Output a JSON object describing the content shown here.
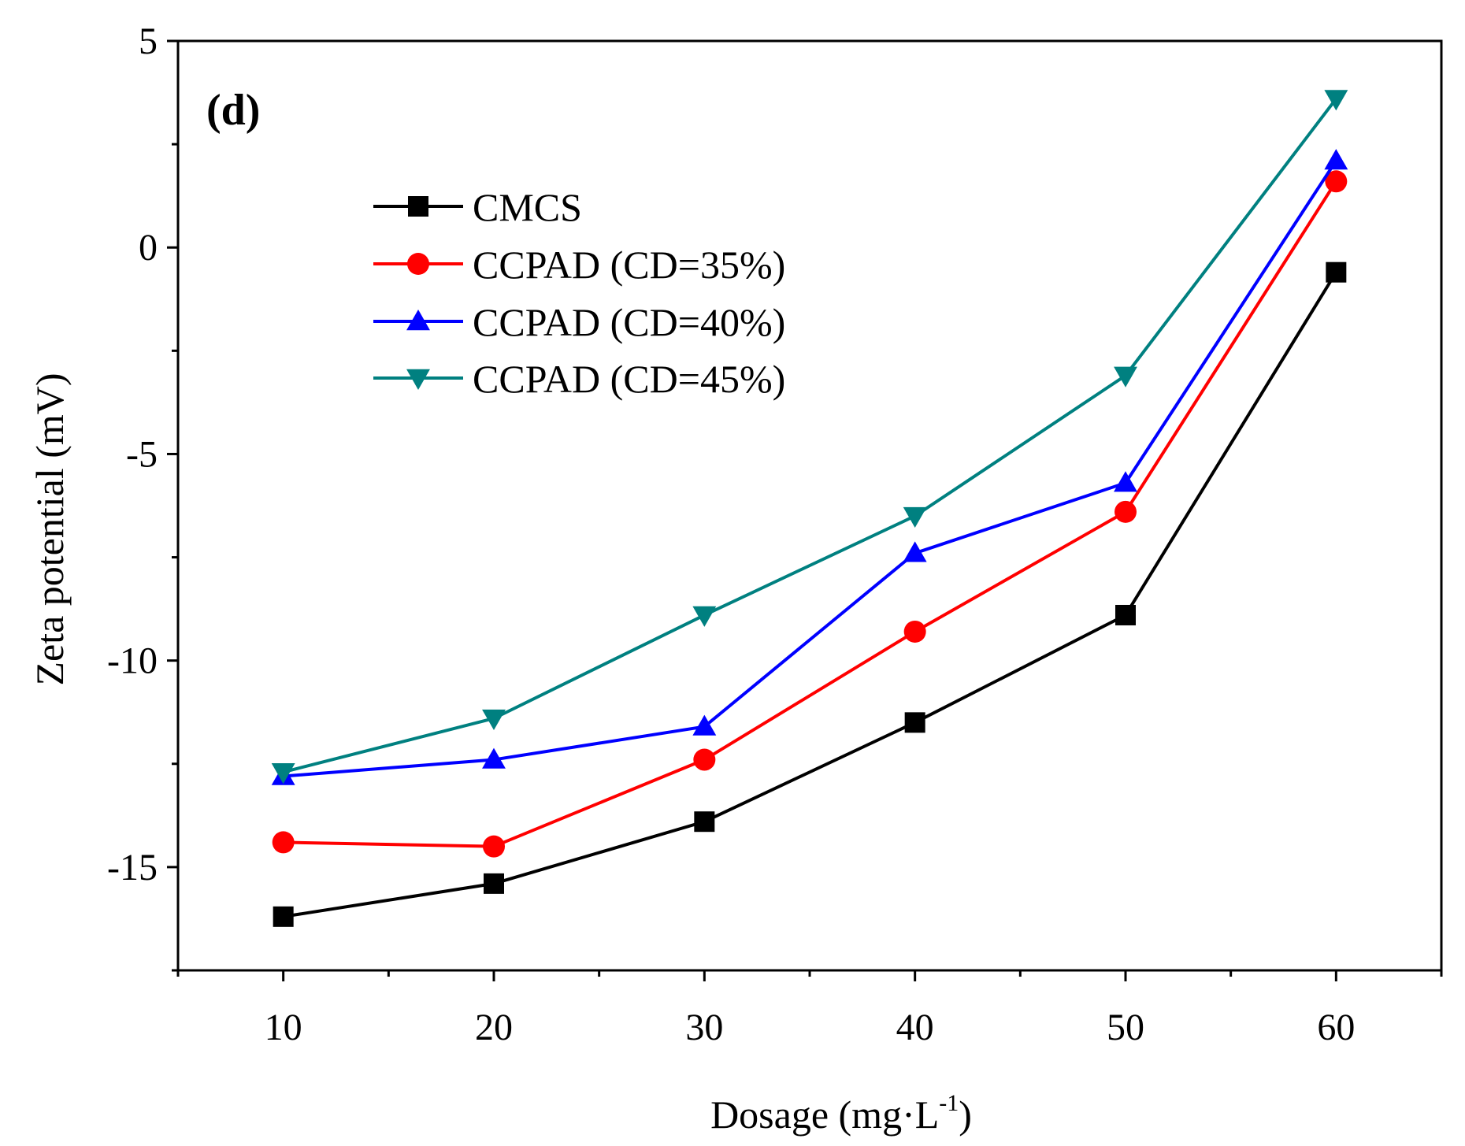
{
  "chart_data": {
    "type": "line",
    "panel_label": "(d)",
    "xlabel": "Dosage (mg·L",
    "xlabel_sup": "-1",
    "xlabel_close": ")",
    "ylabel": "Zeta potential (mV)",
    "x": [
      10,
      20,
      30,
      40,
      50,
      60
    ],
    "xlim": [
      5,
      65
    ],
    "ylim": [
      -17.5,
      5
    ],
    "xticks": [
      10,
      20,
      30,
      40,
      50,
      60
    ],
    "yticks": [
      5,
      0,
      -5,
      -10,
      -15
    ],
    "ytick_labels": [
      "5",
      "0",
      "-5",
      "-10",
      "-15"
    ],
    "grid": false,
    "legend_position": "upper-left",
    "series": [
      {
        "name": "CMCS",
        "color": "#000000",
        "marker": "square",
        "values": [
          -16.2,
          -15.4,
          -13.9,
          -11.5,
          -8.9,
          -0.6
        ]
      },
      {
        "name": "CCPAD (CD=35%)",
        "color": "#ff0000",
        "marker": "circle",
        "values": [
          -14.4,
          -14.5,
          -12.4,
          -9.3,
          -6.4,
          1.6
        ]
      },
      {
        "name": "CCPAD (CD=40%)",
        "color": "#0000ff",
        "marker": "triangle-up",
        "values": [
          -12.8,
          -12.4,
          -11.6,
          -7.4,
          -5.7,
          2.1
        ]
      },
      {
        "name": "CCPAD (CD=45%)",
        "color": "#008080",
        "marker": "triangle-down",
        "values": [
          -12.7,
          -11.4,
          -8.9,
          -6.5,
          -3.1,
          3.6
        ]
      }
    ]
  }
}
